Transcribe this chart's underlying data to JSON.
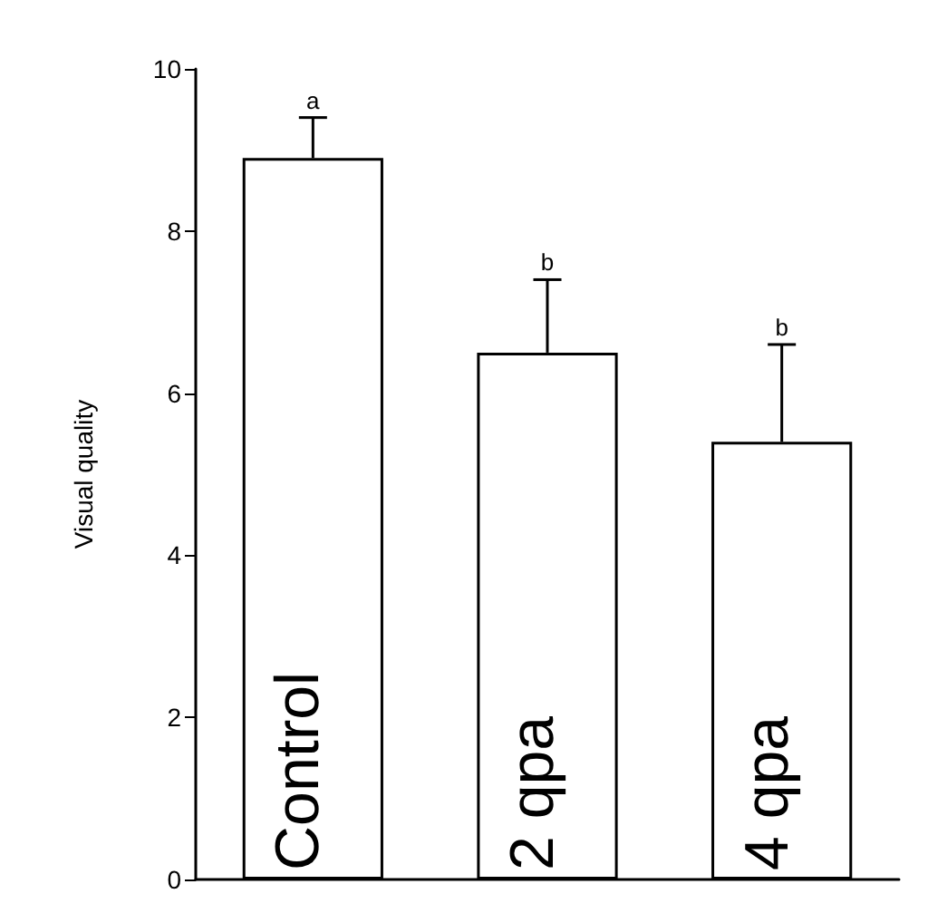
{
  "chart_data": {
    "type": "bar",
    "ylabel": "Visual quality",
    "categories": [
      "Control",
      "2 qpa",
      "4 qpa"
    ],
    "values": [
      8.9,
      6.5,
      5.4
    ],
    "color": "#ffffff",
    "errors": [
      [
        8.9,
        9.4
      ],
      [
        6.5,
        7.4
      ],
      [
        5.4,
        6.6
      ]
    ],
    "ylim": [
      0,
      10
    ],
    "yticks": [
      0,
      2,
      4,
      6,
      8,
      10
    ],
    "grid": false,
    "tick_labels": "y",
    "annotations": [
      {
        "text": "a",
        "x": "Control",
        "y": 9.4
      },
      {
        "text": "b",
        "x": "2 qpa",
        "y": 7.4
      },
      {
        "text": "b",
        "x": "4 qpa",
        "y": 6.6
      }
    ]
  }
}
